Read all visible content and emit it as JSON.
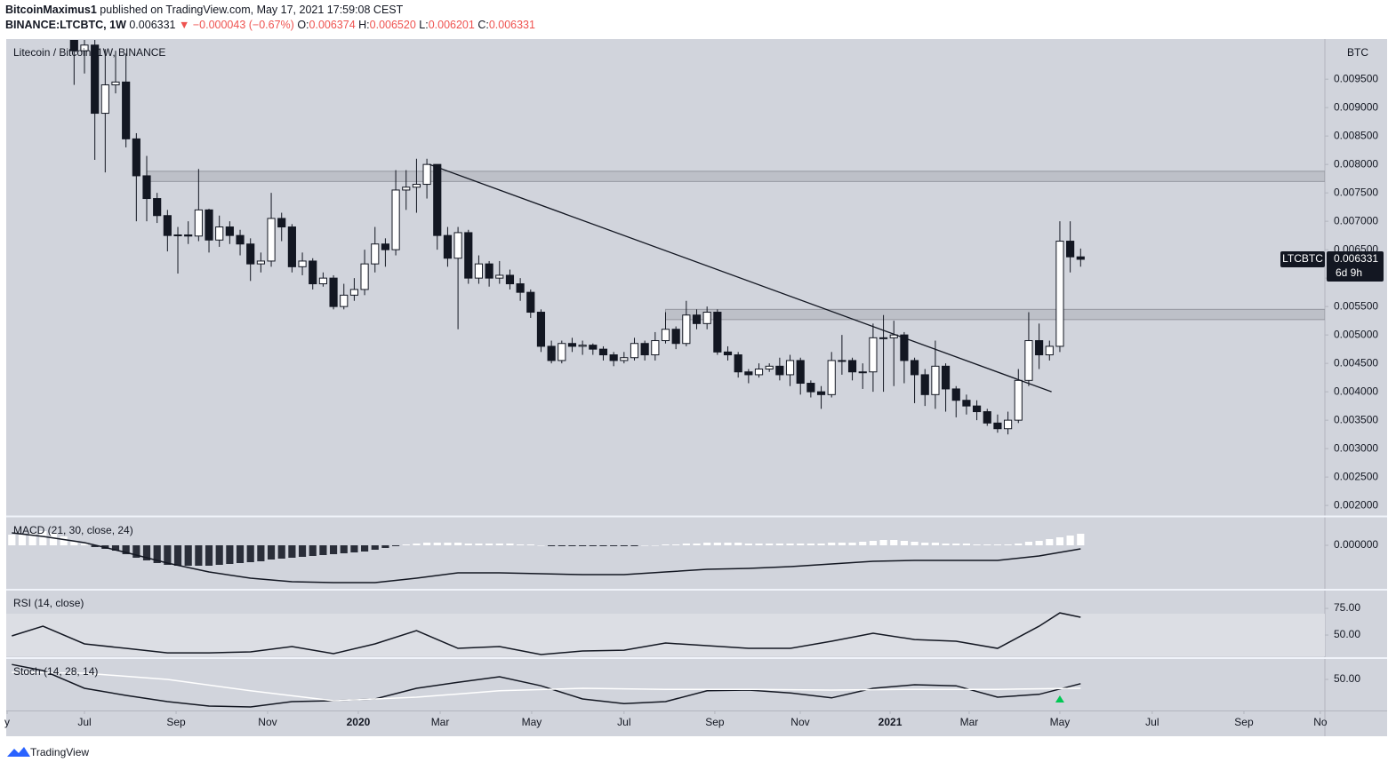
{
  "header": {
    "author": "BitcoinMaximus1",
    "published": "published on TradingView.com, May 17, 2021 17:59:08 CEST",
    "symbol": "BINANCE:LTCBTC, 1W",
    "last": "0.006331",
    "arrow": "▼",
    "change": "−0.000043 (−0.67%)",
    "o_label": "O:",
    "o": "0.006374",
    "h_label": "H:",
    "h": "0.006520",
    "l_label": "L:",
    "l": "0.006201",
    "c_label": "C:",
    "c": "0.006331"
  },
  "footer": {
    "brand": "TradingView"
  },
  "chart_data": [
    {
      "type": "candlestick",
      "title": "Litecoin / Bitcoin, 1W, BINANCE",
      "currency": "BTC",
      "up_color": "#ffffff",
      "down_color": "#131722",
      "x": [
        -1,
        0,
        1,
        2,
        3,
        4,
        5,
        6,
        7,
        8,
        9,
        10,
        11,
        12,
        13,
        14,
        15,
        16,
        17,
        18,
        19,
        20,
        21,
        22,
        23,
        24,
        25,
        26,
        27,
        28,
        29,
        30,
        31,
        32,
        33,
        34,
        35,
        36,
        37,
        38,
        39,
        40,
        41,
        42,
        43,
        44,
        45,
        46,
        47,
        48,
        49,
        50,
        51,
        52,
        53,
        54,
        55,
        56,
        57,
        58,
        59,
        60,
        61,
        62,
        63,
        64,
        65,
        66,
        67,
        68,
        69,
        70,
        71,
        72,
        73,
        74,
        75,
        76,
        77,
        78,
        79,
        80,
        81,
        82,
        83,
        84,
        85,
        86,
        87,
        88,
        89,
        90,
        91,
        92,
        93,
        94,
        95,
        96
      ],
      "open": [
        0.0103,
        0.01,
        0.0101,
        0.0089,
        0.0094,
        0.00945,
        0.00845,
        0.0078,
        0.0074,
        0.0071,
        0.00675,
        0.00676,
        0.00674,
        0.0072,
        0.00667,
        0.0069,
        0.00675,
        0.0066,
        0.00625,
        0.0063,
        0.00705,
        0.0069,
        0.0062,
        0.0063,
        0.0059,
        0.006,
        0.0055,
        0.0057,
        0.0058,
        0.00625,
        0.0066,
        0.0065,
        0.00755,
        0.0076,
        0.00765,
        0.008,
        0.00675,
        0.00635,
        0.0068,
        0.006,
        0.00625,
        0.006,
        0.00605,
        0.0059,
        0.00575,
        0.0054,
        0.0048,
        0.00455,
        0.00485,
        0.0048,
        0.00482,
        0.00475,
        0.00465,
        0.00455,
        0.0046,
        0.00485,
        0.00465,
        0.0049,
        0.0051,
        0.00485,
        0.00535,
        0.0052,
        0.0054,
        0.0047,
        0.00465,
        0.00435,
        0.0043,
        0.0044,
        0.00445,
        0.0043,
        0.00455,
        0.00415,
        0.004,
        0.00395,
        0.00455,
        0.00455,
        0.00435,
        0.00435,
        0.00495,
        0.00495,
        0.005,
        0.00455,
        0.0043,
        0.00395,
        0.00445,
        0.00405,
        0.00385,
        0.00375,
        0.00365,
        0.00345,
        0.00335,
        0.0035,
        0.0042,
        0.0049,
        0.00465,
        0.0048,
        0.00665,
        0.006374
      ],
      "high": [
        0.0106,
        0.0104,
        0.0103,
        0.01003,
        0.01,
        0.00995,
        0.00855,
        0.00815,
        0.0075,
        0.0072,
        0.0069,
        0.007,
        0.00792,
        0.00722,
        0.0071,
        0.007,
        0.00685,
        0.0067,
        0.00645,
        0.0075,
        0.00715,
        0.00695,
        0.00645,
        0.00635,
        0.0061,
        0.00605,
        0.0059,
        0.006,
        0.0065,
        0.0069,
        0.0067,
        0.0079,
        0.0079,
        0.0081,
        0.0081,
        0.008,
        0.0069,
        0.0069,
        0.00685,
        0.0064,
        0.0063,
        0.0063,
        0.00615,
        0.006,
        0.0058,
        0.00545,
        0.0049,
        0.0049,
        0.00495,
        0.0049,
        0.00485,
        0.0048,
        0.0047,
        0.0047,
        0.00495,
        0.0049,
        0.00505,
        0.0054,
        0.00515,
        0.0056,
        0.00545,
        0.0055,
        0.00545,
        0.0048,
        0.0047,
        0.0044,
        0.0045,
        0.0045,
        0.0046,
        0.00465,
        0.0046,
        0.0042,
        0.0041,
        0.0047,
        0.005,
        0.0046,
        0.0045,
        0.0052,
        0.00535,
        0.00525,
        0.00505,
        0.0046,
        0.0044,
        0.0049,
        0.0045,
        0.0041,
        0.00395,
        0.00385,
        0.0037,
        0.0036,
        0.00365,
        0.0044,
        0.0054,
        0.0052,
        0.0049,
        0.007,
        0.007,
        0.00652
      ],
      "low": [
        0.0094,
        0.0096,
        0.00808,
        0.00786,
        0.00925,
        0.0083,
        0.007,
        0.007,
        0.00697,
        0.00647,
        0.00608,
        0.0066,
        0.00665,
        0.00645,
        0.00655,
        0.0066,
        0.0064,
        0.00595,
        0.0061,
        0.0062,
        0.00665,
        0.0061,
        0.00605,
        0.0058,
        0.00585,
        0.00545,
        0.00545,
        0.0056,
        0.0057,
        0.0061,
        0.0062,
        0.0064,
        0.0072,
        0.00715,
        0.0074,
        0.0065,
        0.0062,
        0.0051,
        0.0059,
        0.0059,
        0.00585,
        0.0059,
        0.0058,
        0.0056,
        0.0053,
        0.0047,
        0.0045,
        0.0045,
        0.0047,
        0.00465,
        0.00465,
        0.00455,
        0.00445,
        0.0045,
        0.00455,
        0.00455,
        0.00455,
        0.00485,
        0.00475,
        0.0048,
        0.0051,
        0.0051,
        0.00465,
        0.00455,
        0.00425,
        0.00415,
        0.00425,
        0.00435,
        0.0042,
        0.0041,
        0.00395,
        0.0039,
        0.0037,
        0.0039,
        0.0043,
        0.0042,
        0.00405,
        0.004,
        0.004,
        0.0041,
        0.00415,
        0.0038,
        0.00375,
        0.0037,
        0.00365,
        0.00355,
        0.0036,
        0.0035,
        0.0034,
        0.00328,
        0.00325,
        0.00345,
        0.0041,
        0.0044,
        0.00455,
        0.0047,
        0.0061,
        0.006201
      ],
      "close": [
        0.01,
        0.0101,
        0.0089,
        0.0094,
        0.00945,
        0.00845,
        0.0078,
        0.0074,
        0.0071,
        0.00675,
        0.00676,
        0.00674,
        0.0072,
        0.00667,
        0.0069,
        0.00675,
        0.0066,
        0.00625,
        0.0063,
        0.00705,
        0.0069,
        0.0062,
        0.0063,
        0.0059,
        0.006,
        0.0055,
        0.0057,
        0.0058,
        0.00625,
        0.0066,
        0.0065,
        0.00755,
        0.0076,
        0.00765,
        0.008,
        0.00675,
        0.00635,
        0.0068,
        0.006,
        0.00625,
        0.006,
        0.00605,
        0.0059,
        0.00575,
        0.0054,
        0.0048,
        0.00455,
        0.00485,
        0.0048,
        0.00482,
        0.00475,
        0.00465,
        0.00455,
        0.0046,
        0.00485,
        0.00465,
        0.0049,
        0.0051,
        0.00485,
        0.00535,
        0.0052,
        0.0054,
        0.0047,
        0.00465,
        0.00435,
        0.0043,
        0.0044,
        0.00445,
        0.0043,
        0.00455,
        0.00415,
        0.004,
        0.00395,
        0.00455,
        0.00455,
        0.00435,
        0.00435,
        0.00495,
        0.00495,
        0.005,
        0.00455,
        0.0043,
        0.00395,
        0.00445,
        0.00405,
        0.00385,
        0.00375,
        0.00365,
        0.00345,
        0.00335,
        0.0035,
        0.0042,
        0.0049,
        0.00465,
        0.0048,
        0.00665,
        0.006374,
        0.006331
      ],
      "xlim": [
        -7.54,
        119.54
      ],
      "ylim": [
        0.00183,
        0.01019
      ],
      "xticks": [
        {
          "value": -7.45,
          "label": "y"
        },
        {
          "value": 0,
          "label": "Jul"
        },
        {
          "value": 8.83,
          "label": "Sep"
        },
        {
          "value": 17.65,
          "label": "Nov"
        },
        {
          "value": 26.39,
          "label": "2020"
        },
        {
          "value": 34.28,
          "label": "Mar"
        },
        {
          "value": 43.1,
          "label": "May"
        },
        {
          "value": 52,
          "label": "Jul"
        },
        {
          "value": 60.75,
          "label": "Sep"
        },
        {
          "value": 68.98,
          "label": "Nov"
        },
        {
          "value": 77.64,
          "label": "2021"
        },
        {
          "value": 85.26,
          "label": "Mar"
        },
        {
          "value": 94,
          "label": "May"
        },
        {
          "value": 102.9,
          "label": "Jul"
        },
        {
          "value": 111.74,
          "label": "Sep"
        },
        {
          "value": 119.1,
          "label": "No"
        }
      ],
      "yticks": [
        {
          "value": 0.002,
          "label": "0.002000"
        },
        {
          "value": 0.0025,
          "label": "0.002500"
        },
        {
          "value": 0.003,
          "label": "0.003000"
        },
        {
          "value": 0.0035,
          "label": "0.003500"
        },
        {
          "value": 0.004,
          "label": "0.004000"
        },
        {
          "value": 0.0045,
          "label": "0.004500"
        },
        {
          "value": 0.005,
          "label": "0.005000"
        },
        {
          "value": 0.0055,
          "label": "0.005500"
        },
        {
          "value": 0.006,
          "label": "0.006000"
        },
        {
          "value": 0.0065,
          "label": "0.006500"
        },
        {
          "value": 0.007,
          "label": "0.007000"
        },
        {
          "value": 0.0075,
          "label": "0.007500"
        },
        {
          "value": 0.008,
          "label": "0.008000"
        },
        {
          "value": 0.0085,
          "label": "0.008500"
        },
        {
          "value": 0.009,
          "label": "0.009000"
        },
        {
          "value": 0.0095,
          "label": "0.009500"
        }
      ],
      "zones": [
        {
          "from": 0.0077,
          "to": 0.00788,
          "start": 6
        },
        {
          "from": 0.00527,
          "to": 0.00545,
          "start": 56
        }
      ],
      "trendline": {
        "x": [
          33.25,
          93.2
        ],
        "y": [
          0.008,
          0.004
        ]
      },
      "last_price": {
        "symbol": "LTCBTC",
        "value": 0.006331,
        "countdown": "6d 9h"
      }
    },
    {
      "type": "histogram",
      "title": "MACD (21, 30, close, 24)",
      "up_color": "#ffffff",
      "down_color": "#2a2e39",
      "x": [
        -7,
        -6,
        -5,
        -4,
        -3,
        -2,
        -1,
        0,
        1,
        2,
        3,
        4,
        5,
        6,
        7,
        8,
        9,
        10,
        11,
        12,
        13,
        14,
        15,
        16,
        17,
        18,
        19,
        20,
        21,
        22,
        23,
        24,
        25,
        26,
        27,
        28,
        29,
        30,
        31,
        32,
        33,
        34,
        35,
        36,
        37,
        38,
        39,
        40,
        41,
        42,
        43,
        44,
        45,
        46,
        47,
        48,
        49,
        50,
        51,
        52,
        53,
        54,
        55,
        56,
        57,
        58,
        59,
        60,
        61,
        62,
        63,
        64,
        65,
        66,
        67,
        68,
        69,
        70,
        71,
        72,
        73,
        74,
        75,
        76,
        77,
        78,
        79,
        80,
        81,
        82,
        83,
        84,
        85,
        86,
        87,
        88,
        89,
        90,
        91,
        92,
        93,
        94,
        95,
        96
      ],
      "values": [
        0.00012,
        0.00012,
        0.00014,
        0.00016,
        0.00014,
        0.0001,
        5e-05,
        2e-05,
        -2e-05,
        -4e-05,
        -6e-05,
        -0.0001,
        -0.00014,
        -0.00017,
        -0.0002,
        -0.00022,
        -0.00023,
        -0.00023,
        -0.00023,
        -0.00023,
        -0.00022,
        -0.00021,
        -0.0002,
        -0.00019,
        -0.00018,
        -0.00016,
        -0.00015,
        -0.00014,
        -0.00013,
        -0.00012,
        -0.00011,
        -0.0001,
        -9e-05,
        -8e-05,
        -7e-05,
        -5e-05,
        -3e-05,
        -1e-05,
        1e-05,
        2e-05,
        3e-05,
        3e-05,
        3e-05,
        3e-05,
        2e-05,
        2e-05,
        2e-05,
        2e-05,
        2e-05,
        1e-05,
        1e-05,
        0,
        -1e-05,
        -1e-05,
        -1e-05,
        -1e-05,
        -1e-05,
        -1e-05,
        -1e-05,
        -1e-05,
        -1e-05,
        0,
        0,
        1e-05,
        1e-05,
        2e-05,
        2e-05,
        3e-05,
        3e-05,
        3e-05,
        3e-05,
        2e-05,
        2e-05,
        2e-05,
        2e-05,
        2e-05,
        2e-05,
        2e-05,
        2e-05,
        3e-05,
        3e-05,
        3e-05,
        4e-05,
        5e-05,
        6e-05,
        6e-05,
        5e-05,
        4e-05,
        3e-05,
        3e-05,
        2e-05,
        2e-05,
        2e-05,
        1e-05,
        1e-05,
        1e-05,
        1e-05,
        2e-05,
        4e-05,
        5e-05,
        7e-05,
        9e-05,
        0.00011,
        0.00013
      ],
      "line": {
        "color": "#131722",
        "x": [
          -7,
          -4,
          0,
          4,
          8,
          12,
          16,
          20,
          24,
          28,
          32,
          36,
          40,
          44,
          48,
          52,
          56,
          60,
          64,
          68,
          72,
          76,
          80,
          84,
          88,
          92,
          96
        ],
        "values": [
          0.00014,
          0.0001,
          3e-05,
          -8e-05,
          -0.0002,
          -0.0003,
          -0.00037,
          -0.00041,
          -0.00042,
          -0.00042,
          -0.00037,
          -0.00031,
          -0.00031,
          -0.00032,
          -0.00033,
          -0.00033,
          -0.0003,
          -0.00027,
          -0.00026,
          -0.00024,
          -0.00021,
          -0.00018,
          -0.00017,
          -0.00017,
          -0.00017,
          -0.00012,
          -4e-05
        ]
      },
      "xlim": [
        -7.54,
        119.54
      ],
      "ylim": [
        -0.00049,
        0.00031
      ],
      "yticks": [
        {
          "value": 0,
          "label": "0.000000"
        }
      ]
    },
    {
      "type": "line",
      "title": "RSI (14, close)",
      "band": [
        30,
        70
      ],
      "band_color": "#dcdee4",
      "series": [
        {
          "color": "#131722",
          "x": [
            -7,
            -4,
            0,
            4,
            8,
            12,
            16,
            20,
            24,
            28,
            32,
            36,
            40,
            44,
            48,
            52,
            56,
            60,
            64,
            68,
            72,
            76,
            80,
            84,
            88,
            92,
            94,
            96
          ],
          "values": [
            49.2,
            58.3,
            41.7,
            37.5,
            33.3,
            33.3,
            34.2,
            39.2,
            32.5,
            41.7,
            54.2,
            37.5,
            39.2,
            31.7,
            35,
            35.8,
            42.5,
            40,
            37.5,
            37.5,
            44.2,
            51.7,
            45.8,
            44.2,
            37.5,
            58.3,
            70.8,
            66.7
          ]
        }
      ],
      "xlim": [
        -7.54,
        119.54
      ],
      "ylim": [
        29.2,
        91.7
      ],
      "yticks": [
        {
          "value": 75,
          "label": "75.00"
        },
        {
          "value": 50,
          "label": "50.00"
        }
      ]
    },
    {
      "type": "line",
      "title": "Stoch (14, 28, 14)",
      "series": [
        {
          "color": "#131722",
          "x": [
            -7,
            -4,
            0,
            4,
            8,
            12,
            16,
            20,
            24,
            28,
            32,
            36,
            40,
            44,
            48,
            52,
            56,
            60,
            64,
            68,
            72,
            76,
            80,
            84,
            88,
            92,
            96
          ],
          "values": [
            71,
            62.5,
            37.5,
            27.5,
            18.75,
            12.5,
            11.25,
            18.75,
            20,
            22.5,
            37.5,
            46,
            53.75,
            41,
            22.5,
            16,
            18.75,
            34,
            35,
            31,
            24,
            37.5,
            42.5,
            41,
            25,
            29,
            44
          ]
        },
        {
          "color": "#ffffff",
          "x": [
            -7,
            0,
            8,
            16,
            24,
            32,
            40,
            48,
            56,
            64,
            72,
            80,
            88,
            96
          ],
          "values": [
            60,
            58.75,
            50,
            34,
            20,
            25,
            34,
            37.5,
            36,
            36,
            35,
            36,
            36,
            37.5
          ]
        }
      ],
      "marker": {
        "x": 94,
        "color": "#00c853"
      },
      "xlim": [
        -7.54,
        119.54
      ],
      "ylim": [
        6.25,
        78.75
      ],
      "yticks": [
        {
          "value": 50,
          "label": "50.00"
        }
      ]
    }
  ]
}
